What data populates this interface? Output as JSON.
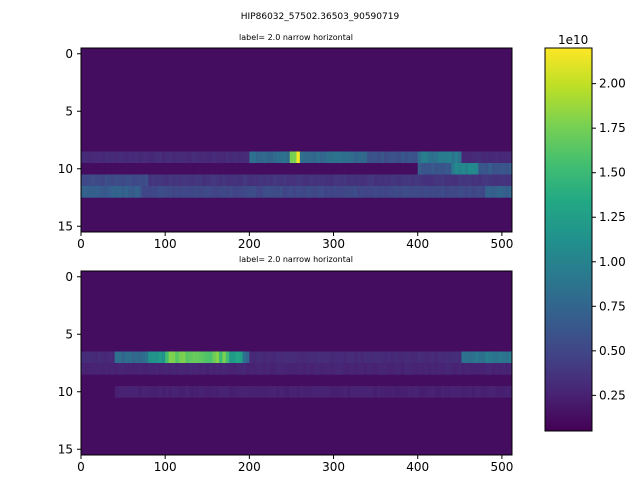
{
  "chart_data": [
    {
      "type": "heatmap",
      "suptitle": "HIP86032_57502.36503_90590719",
      "title": "label= 2.0 narrow horizontal",
      "xlim": [
        0,
        512
      ],
      "ylim": [
        15.5,
        -0.5
      ],
      "xticks": [
        "0",
        "100",
        "200",
        "300",
        "400",
        "500"
      ],
      "yticks": [
        "0",
        "5",
        "10",
        "15"
      ],
      "rows": 16,
      "features": [
        {
          "row": 9,
          "segments": [
            [
              0,
              512,
              0.12
            ],
            [
              200,
              340,
              0.35
            ],
            [
              245,
              260,
              0.8
            ],
            [
              255,
              258,
              1.0
            ],
            [
              330,
              450,
              0.25
            ],
            [
              400,
              450,
              0.4
            ]
          ]
        },
        {
          "row": 10,
          "segments": [
            [
              400,
              512,
              0.28
            ],
            [
              440,
              470,
              0.45
            ]
          ]
        },
        {
          "row": 11,
          "segments": [
            [
              0,
              512,
              0.15
            ],
            [
              0,
              80,
              0.22
            ]
          ]
        },
        {
          "row": 12,
          "segments": [
            [
              0,
              512,
              0.22
            ],
            [
              0,
              70,
              0.3
            ],
            [
              480,
              512,
              0.32
            ]
          ]
        }
      ]
    },
    {
      "type": "heatmap",
      "title": "label= 2.0 narrow horizontal",
      "xlim": [
        0,
        512
      ],
      "ylim": [
        15.5,
        -0.5
      ],
      "xticks": [
        "0",
        "100",
        "200",
        "300",
        "400",
        "500"
      ],
      "yticks": [
        "0",
        "5",
        "10",
        "15"
      ],
      "rows": 16,
      "features": [
        {
          "row": 7,
          "segments": [
            [
              0,
              512,
              0.12
            ],
            [
              40,
              200,
              0.35
            ],
            [
              80,
              190,
              0.55
            ],
            [
              100,
              175,
              0.75
            ],
            [
              450,
              512,
              0.4
            ]
          ]
        },
        {
          "row": 8,
          "segments": [
            [
              0,
              512,
              0.1
            ]
          ]
        },
        {
          "row": 10,
          "segments": [
            [
              40,
              512,
              0.09
            ]
          ]
        }
      ]
    },
    {
      "type": "colorbar",
      "offset_label": "1e10",
      "range": [
        0.05,
        2.2
      ],
      "ticks": [
        "0.25",
        "0.50",
        "0.75",
        "1.00",
        "1.25",
        "1.50",
        "1.75",
        "2.00"
      ],
      "tick_values": [
        0.25,
        0.5,
        0.75,
        1.0,
        1.25,
        1.5,
        1.75,
        2.0
      ]
    }
  ]
}
